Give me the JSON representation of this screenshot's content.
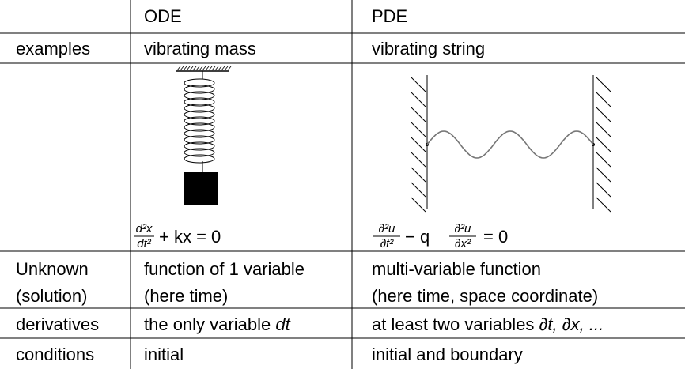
{
  "table": {
    "columns": [
      "ODE",
      "PDE"
    ],
    "rows": [
      {
        "label": [
          "examples"
        ],
        "ode": [
          "vibrating mass"
        ],
        "pde": [
          "vibrating string"
        ]
      },
      {
        "label": [
          "Unknown",
          "(solution)"
        ],
        "ode": [
          "function of 1 variable",
          "(here time)"
        ],
        "pde": [
          "multi-variable function",
          "(here time, space coordinate)"
        ]
      },
      {
        "label": [
          "derivatives"
        ],
        "ode": [
          "the only variable",
          "dt"
        ],
        "pde": [
          "at least two variables",
          "∂t, ∂x, ..."
        ]
      },
      {
        "label": [
          "conditions"
        ],
        "ode": [
          "initial"
        ],
        "pde": [
          "initial and boundary"
        ]
      }
    ],
    "equations": {
      "ode": {
        "num": "d²x",
        "den": "dt²",
        "rest": "+ kx = 0"
      },
      "pde": {
        "num1": "∂²u",
        "den1": "∂t²",
        "mid": "− q",
        "num2": "∂²u",
        "den2": "∂x²",
        "rest": "= 0"
      }
    }
  }
}
